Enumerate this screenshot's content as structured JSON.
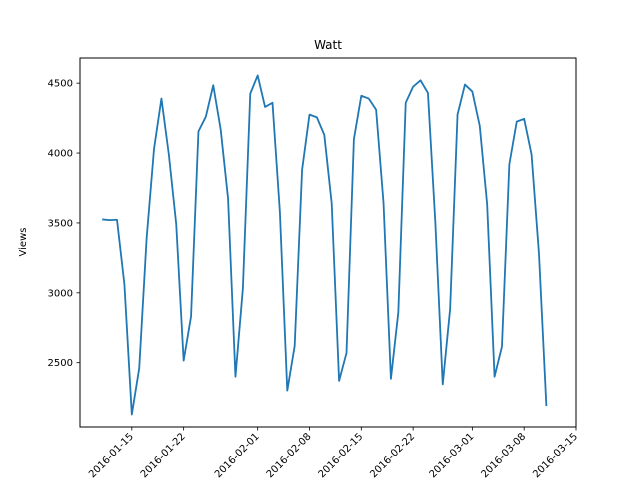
{
  "chart_data": {
    "type": "line",
    "title": "Watt",
    "xlabel": "",
    "ylabel": "Views",
    "grid": false,
    "legend": "none",
    "line_color": "#1f77b4",
    "xlim": [
      "2016-01-08",
      "2016-03-15"
    ],
    "ylim": [
      2040,
      4680
    ],
    "x_ticks": [
      "2016-01-15",
      "2016-01-22",
      "2016-02-01",
      "2016-02-08",
      "2016-02-15",
      "2016-02-22",
      "2016-03-01",
      "2016-03-08",
      "2016-03-15"
    ],
    "y_ticks": [
      2500,
      3000,
      3500,
      4000,
      4500
    ],
    "y_tick_labels": [
      "2500",
      "3000",
      "3500",
      "4000",
      "4500"
    ],
    "series": [
      {
        "x": [
          "2016-01-11",
          "2016-01-12",
          "2016-01-13",
          "2016-01-14",
          "2016-01-15",
          "2016-01-16",
          "2016-01-17",
          "2016-01-18",
          "2016-01-19",
          "2016-01-20",
          "2016-01-21",
          "2016-01-22",
          "2016-01-23",
          "2016-01-24",
          "2016-01-25",
          "2016-01-26",
          "2016-01-27",
          "2016-01-28",
          "2016-01-29",
          "2016-01-30",
          "2016-01-31",
          "2016-02-01",
          "2016-02-02",
          "2016-02-03",
          "2016-02-04",
          "2016-02-05",
          "2016-02-06",
          "2016-02-07",
          "2016-02-08",
          "2016-02-09",
          "2016-02-10",
          "2016-02-11",
          "2016-02-12",
          "2016-02-13",
          "2016-02-14",
          "2016-02-15",
          "2016-02-16",
          "2016-02-17",
          "2016-02-18",
          "2016-02-19",
          "2016-02-20",
          "2016-02-21",
          "2016-02-22",
          "2016-02-23",
          "2016-02-24",
          "2016-02-25",
          "2016-02-26",
          "2016-02-27",
          "2016-02-28",
          "2016-02-29",
          "2016-03-01",
          "2016-03-02",
          "2016-03-03",
          "2016-03-04",
          "2016-03-05",
          "2016-03-06",
          "2016-03-07",
          "2016-03-08",
          "2016-03-09",
          "2016-03-10",
          "2016-03-11",
          "2016-03-12",
          "2016-03-13",
          "2016-03-14"
        ],
        "y": [
          3525,
          3520,
          3523,
          3060,
          2130,
          2460,
          3390,
          4030,
          4390,
          3990,
          3490,
          2515,
          2830,
          4155,
          4260,
          4485,
          4170,
          3675,
          2400,
          3030,
          4425,
          4555,
          4330,
          4360,
          3580,
          2300,
          2620,
          3880,
          4275,
          4255,
          4130,
          3640,
          2370,
          2570,
          4100,
          4410,
          4390,
          4310,
          3645,
          2385,
          2860,
          4360,
          4475,
          4520,
          4430,
          3505,
          2345,
          2885,
          4275,
          4490,
          4440,
          4195,
          3635,
          2400,
          2615,
          3920,
          4225,
          4245,
          3990,
          3280,
          2190,
          null,
          null,
          null
        ]
      }
    ]
  }
}
